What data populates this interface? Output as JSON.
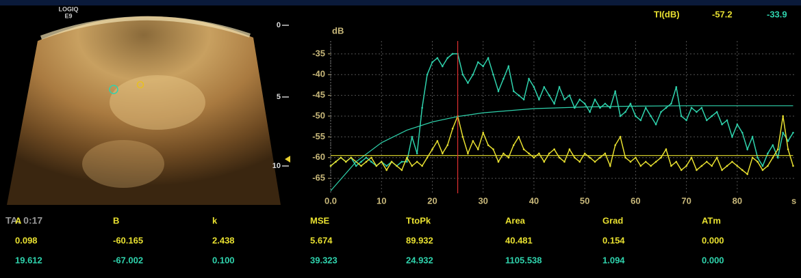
{
  "device": {
    "logo": [
      "LOGIQ",
      "E9"
    ],
    "timer": "TA: 0:17",
    "depth_scale": [
      0,
      5,
      10
    ]
  },
  "ti": {
    "label": "TI(dB)",
    "values": [
      "-57.2",
      "-33.9"
    ]
  },
  "chart_data": {
    "type": "line",
    "ylabel": "dB",
    "xlabel": "s",
    "xlim": [
      0,
      91.2
    ],
    "ylim": [
      -68.6,
      -31.9
    ],
    "xticks": [
      {
        "value": 0,
        "label": "0.0"
      },
      10,
      20,
      30,
      40,
      50,
      60,
      70,
      80
    ],
    "yticks": [
      -35,
      -40,
      -45,
      -50,
      -55,
      -60,
      -65
    ],
    "grid": true,
    "cursor_x": 25,
    "cursor_color": "#e03030",
    "x": [
      0,
      1,
      2,
      3,
      4,
      5,
      6,
      7,
      8,
      9,
      10,
      11,
      12,
      13,
      14,
      15,
      16,
      17,
      18,
      19,
      20,
      21,
      22,
      23,
      24,
      25,
      26,
      27,
      28,
      29,
      30,
      31,
      32,
      33,
      34,
      35,
      36,
      37,
      38,
      39,
      40,
      41,
      42,
      43,
      44,
      45,
      46,
      47,
      48,
      49,
      50,
      51,
      52,
      53,
      54,
      55,
      56,
      57,
      58,
      59,
      60,
      61,
      62,
      63,
      64,
      65,
      66,
      67,
      68,
      69,
      70,
      71,
      72,
      73,
      74,
      75,
      76,
      77,
      78,
      79,
      80,
      81,
      82,
      83,
      84,
      85,
      86,
      87,
      88,
      89,
      90,
      91
    ],
    "series": [
      {
        "color": "#2fd3ad",
        "values": [
          -62,
          -61,
          -60,
          -61,
          -60,
          -62,
          -61,
          -60,
          -61,
          -62,
          -61,
          -62,
          -61,
          -62,
          -61,
          -61,
          -55,
          -59,
          -48,
          -40,
          -37,
          -36,
          -38,
          -36,
          -35,
          -35,
          -40,
          -42,
          -40,
          -37,
          -38,
          -36,
          -40,
          -44,
          -41,
          -38,
          -44,
          -45,
          -46,
          -41,
          -43,
          -46,
          -43,
          -45,
          -47,
          -43,
          -46,
          -45,
          -48,
          -46,
          -47,
          -49,
          -46,
          -48,
          -47,
          -48,
          -44,
          -50,
          -49,
          -47,
          -50,
          -51,
          -48,
          -50,
          -52,
          -49,
          -48,
          -47,
          -43,
          -50,
          -51,
          -48,
          -49,
          -48,
          -51,
          -50,
          -49,
          -52,
          -51,
          -55,
          -52,
          -54,
          -58,
          -55,
          -60,
          -62,
          -59,
          -57,
          -60,
          -54,
          -56,
          -54
        ]
      },
      {
        "color": "#e8e030",
        "values": [
          -62,
          -61,
          -60,
          -61,
          -60,
          -61,
          -62,
          -61,
          -60,
          -62,
          -61,
          -63,
          -61,
          -62,
          -63,
          -60,
          -62,
          -61,
          -62,
          -60,
          -58,
          -56,
          -59,
          -57,
          -53,
          -50,
          -55,
          -59,
          -56,
          -58,
          -54,
          -57,
          -58,
          -61,
          -59,
          -60,
          -57,
          -55,
          -58,
          -59,
          -60,
          -59,
          -61,
          -59,
          -58,
          -60,
          -61,
          -58,
          -60,
          -61,
          -59,
          -60,
          -61,
          -60,
          -59,
          -62,
          -57,
          -55,
          -60,
          -61,
          -60,
          -62,
          -61,
          -62,
          -61,
          -60,
          -58,
          -62,
          -61,
          -63,
          -62,
          -60,
          -63,
          -62,
          -61,
          -62,
          -60,
          -63,
          -62,
          -61,
          -62,
          -63,
          -64,
          -60,
          -61,
          -63,
          -62,
          -60,
          -58,
          -50,
          -58,
          -62
        ]
      },
      {
        "color": "#2fd3ad",
        "x": [
          0,
          5,
          10,
          15,
          20,
          25,
          30,
          40,
          50,
          60,
          70,
          80,
          91
        ],
        "values": [
          -68,
          -61,
          -56.4,
          -53.4,
          -51.4,
          -50.1,
          -49.2,
          -48.2,
          -47.8,
          -47.6,
          -47.5,
          -47.5,
          -47.5
        ]
      },
      {
        "color": "#e8e030",
        "x": [
          0,
          91
        ],
        "values": [
          -59.5,
          -59.5
        ]
      }
    ]
  },
  "table": {
    "headers": [
      "A",
      "B",
      "k",
      "MSE",
      "TtoPk",
      "Area",
      "Grad",
      "ATm"
    ],
    "rows": [
      [
        "0.098",
        "-60.165",
        "2.438",
        "5.674",
        "89.932",
        "40.481",
        "0.154",
        "0.000"
      ],
      [
        "19.612",
        "-67.002",
        "0.100",
        "39.323",
        "24.932",
        "1105.538",
        "1.094",
        "0.000"
      ]
    ]
  }
}
